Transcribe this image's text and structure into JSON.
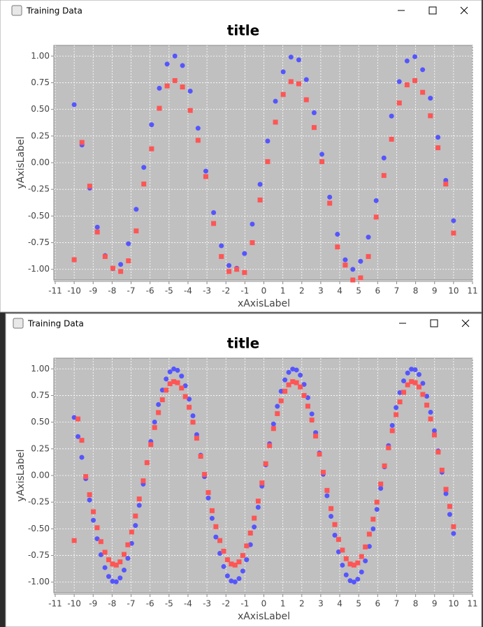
{
  "windows": [
    {
      "title": "Training Data"
    },
    {
      "title": "Training Data"
    }
  ],
  "chart_data": [
    {
      "type": "scatter",
      "title": "title",
      "x_label": "xAxisLabel",
      "y_label": "yAxisLabel",
      "grid": true,
      "xlim": [
        -11,
        11
      ],
      "xticks": [
        -11,
        -10,
        -9,
        -8,
        -7,
        -6,
        -5,
        -4,
        -3,
        -2,
        -1,
        0,
        1,
        2,
        3,
        4,
        5,
        6,
        7,
        8,
        9,
        10,
        11
      ],
      "ylim": [
        -1.1,
        1.1
      ],
      "yticks": [
        {
          "value": 1,
          "label": "1.00"
        },
        {
          "value": 0.75,
          "label": "0.75"
        },
        {
          "value": 0.5,
          "label": "0.50"
        },
        {
          "value": 0.25,
          "label": "0.25"
        },
        {
          "value": 0,
          "label": "0.00"
        },
        {
          "value": -0.25,
          "label": "-0.25"
        },
        {
          "value": -0.5,
          "label": "-0.50"
        },
        {
          "value": -0.75,
          "label": "-0.75"
        },
        {
          "value": -1,
          "label": "-1.00"
        }
      ],
      "x": [
        -10,
        -9.59,
        -9.18,
        -8.78,
        -8.37,
        -7.96,
        -7.55,
        -7.14,
        -6.73,
        -6.33,
        -5.92,
        -5.51,
        -5.1,
        -4.69,
        -4.29,
        -3.88,
        -3.47,
        -3.06,
        -2.65,
        -2.24,
        -1.84,
        -1.43,
        -1.02,
        -0.61,
        -0.2,
        0.2,
        0.61,
        1.02,
        1.43,
        1.84,
        2.24,
        2.65,
        3.06,
        3.47,
        3.88,
        4.29,
        4.69,
        5.1,
        5.51,
        5.92,
        6.33,
        6.73,
        7.14,
        7.55,
        7.96,
        8.37,
        8.78,
        9.18,
        9.59,
        10
      ],
      "series": [
        {
          "color": "#5555ff",
          "marker": "circle",
          "values": [
            0.544,
            0.166,
            -0.238,
            -0.605,
            -0.872,
            -0.994,
            -0.954,
            -0.76,
            -0.437,
            -0.044,
            0.356,
            0.698,
            0.925,
            1.0,
            0.911,
            0.671,
            0.323,
            -0.079,
            -0.468,
            -0.779,
            -0.964,
            -0.99,
            -0.852,
            -0.576,
            -0.203,
            0.203,
            0.576,
            0.852,
            0.99,
            0.964,
            0.779,
            0.468,
            0.079,
            -0.323,
            -0.671,
            -0.911,
            -1.0,
            -0.925,
            -0.698,
            -0.356,
            0.044,
            0.437,
            0.76,
            0.954,
            0.994,
            0.872,
            0.605,
            0.238,
            -0.166,
            -0.544
          ]
        },
        {
          "color": "#ff5555",
          "marker": "square",
          "values": [
            -0.91,
            0.19,
            -0.22,
            -0.65,
            -0.88,
            -0.99,
            -1.02,
            -0.92,
            -0.64,
            -0.2,
            0.13,
            0.51,
            0.72,
            0.77,
            0.71,
            0.49,
            0.21,
            -0.13,
            -0.57,
            -0.88,
            -1.02,
            -1.0,
            -1.03,
            -0.75,
            -0.35,
            0.01,
            0.38,
            0.64,
            0.76,
            0.74,
            0.59,
            0.33,
            0.01,
            -0.38,
            -0.79,
            -0.96,
            -1.1,
            -1.08,
            -0.88,
            -0.51,
            -0.12,
            0.22,
            0.56,
            0.73,
            0.77,
            0.66,
            0.44,
            0.14,
            -0.2,
            -0.66
          ]
        }
      ]
    },
    {
      "type": "scatter",
      "title": "title",
      "x_label": "xAxisLabel",
      "y_label": "yAxisLabel",
      "grid": true,
      "xlim": [
        -11,
        11
      ],
      "xticks": [
        -11,
        -10,
        -9,
        -8,
        -7,
        -6,
        -5,
        -4,
        -3,
        -2,
        -1,
        0,
        1,
        2,
        3,
        4,
        5,
        6,
        7,
        8,
        9,
        10,
        11
      ],
      "ylim": [
        -1.1,
        1.1
      ],
      "yticks": [
        {
          "value": 1,
          "label": "1.00"
        },
        {
          "value": 0.75,
          "label": "0.75"
        },
        {
          "value": 0.5,
          "label": "0.50"
        },
        {
          "value": 0.25,
          "label": "0.25"
        },
        {
          "value": 0,
          "label": "0.00"
        },
        {
          "value": -0.25,
          "label": "-0.25"
        },
        {
          "value": -0.5,
          "label": "-0.50"
        },
        {
          "value": -0.75,
          "label": "-0.75"
        },
        {
          "value": -1,
          "label": "-1.00"
        }
      ],
      "x": [
        -10,
        -9.8,
        -9.6,
        -9.39,
        -9.19,
        -8.99,
        -8.79,
        -8.59,
        -8.38,
        -8.18,
        -7.98,
        -7.78,
        -7.58,
        -7.37,
        -7.17,
        -6.97,
        -6.77,
        -6.57,
        -6.36,
        -6.16,
        -5.96,
        -5.76,
        -5.56,
        -5.35,
        -5.15,
        -4.95,
        -4.75,
        -4.55,
        -4.34,
        -4.14,
        -3.94,
        -3.74,
        -3.54,
        -3.33,
        -3.13,
        -2.93,
        -2.73,
        -2.53,
        -2.32,
        -2.12,
        -1.92,
        -1.72,
        -1.52,
        -1.31,
        -1.11,
        -0.91,
        -0.71,
        -0.51,
        -0.3,
        -0.1,
        0.1,
        0.3,
        0.51,
        0.71,
        0.91,
        1.11,
        1.31,
        1.52,
        1.72,
        1.92,
        2.12,
        2.32,
        2.53,
        2.73,
        2.93,
        3.13,
        3.33,
        3.54,
        3.74,
        3.94,
        4.14,
        4.34,
        4.55,
        4.75,
        4.95,
        5.15,
        5.35,
        5.56,
        5.76,
        5.96,
        6.16,
        6.36,
        6.57,
        6.77,
        6.97,
        7.17,
        7.37,
        7.58,
        7.78,
        7.98,
        8.18,
        8.38,
        8.59,
        8.79,
        8.99,
        9.19,
        9.39,
        9.6,
        9.8,
        10
      ],
      "series": [
        {
          "color": "#5555ff",
          "marker": "circle",
          "values": [
            0.544,
            0.365,
            0.17,
            -0.03,
            -0.23,
            -0.42,
            -0.593,
            -0.743,
            -0.864,
            -0.947,
            -0.992,
            -0.997,
            -0.961,
            -0.887,
            -0.777,
            -0.637,
            -0.469,
            -0.28,
            -0.081,
            0.121,
            0.318,
            0.501,
            0.665,
            0.801,
            0.905,
            0.972,
            0.999,
            0.986,
            0.932,
            0.841,
            0.716,
            0.56,
            0.383,
            0.19,
            -0.011,
            -0.211,
            -0.402,
            -0.577,
            -0.73,
            -0.854,
            -0.941,
            -0.989,
            -0.998,
            -0.967,
            -0.896,
            -0.79,
            -0.649,
            -0.483,
            -0.298,
            -0.1,
            0.1,
            0.298,
            0.483,
            0.649,
            0.79,
            0.896,
            0.967,
            0.998,
            0.989,
            0.941,
            0.854,
            0.73,
            0.577,
            0.402,
            0.211,
            0.011,
            -0.19,
            -0.383,
            -0.56,
            -0.716,
            -0.841,
            -0.932,
            -0.986,
            -0.999,
            -0.972,
            -0.905,
            -0.801,
            -0.665,
            -0.501,
            -0.318,
            -0.121,
            0.081,
            0.28,
            0.469,
            0.637,
            0.777,
            0.887,
            0.961,
            0.997,
            0.992,
            0.947,
            0.864,
            0.743,
            0.593,
            0.42,
            0.23,
            0.03,
            -0.17,
            -0.365,
            -0.544
          ]
        },
        {
          "color": "#ff5555",
          "marker": "square",
          "values": [
            -0.61,
            0.53,
            0.33,
            -0.01,
            -0.18,
            -0.34,
            -0.49,
            -0.62,
            -0.72,
            -0.79,
            -0.83,
            -0.84,
            -0.81,
            -0.74,
            -0.65,
            -0.53,
            -0.38,
            -0.22,
            -0.05,
            0.12,
            0.29,
            0.45,
            0.59,
            0.71,
            0.8,
            0.86,
            0.88,
            0.87,
            0.82,
            0.74,
            0.64,
            0.5,
            0.35,
            0.18,
            0.01,
            -0.16,
            -0.33,
            -0.48,
            -0.61,
            -0.71,
            -0.79,
            -0.83,
            -0.84,
            -0.81,
            -0.75,
            -0.66,
            -0.54,
            -0.4,
            -0.24,
            -0.07,
            0.11,
            0.28,
            0.44,
            0.58,
            0.7,
            0.79,
            0.85,
            0.88,
            0.87,
            0.83,
            0.75,
            0.65,
            0.52,
            0.37,
            0.2,
            0.03,
            -0.14,
            -0.31,
            -0.46,
            -0.6,
            -0.7,
            -0.78,
            -0.83,
            -0.84,
            -0.82,
            -0.76,
            -0.67,
            -0.55,
            -0.41,
            -0.25,
            -0.08,
            0.09,
            0.26,
            0.42,
            0.57,
            0.69,
            0.78,
            0.85,
            0.88,
            0.87,
            0.83,
            0.76,
            0.66,
            0.53,
            0.38,
            0.22,
            0.05,
            -0.13,
            -0.29,
            -0.48
          ]
        }
      ]
    }
  ]
}
